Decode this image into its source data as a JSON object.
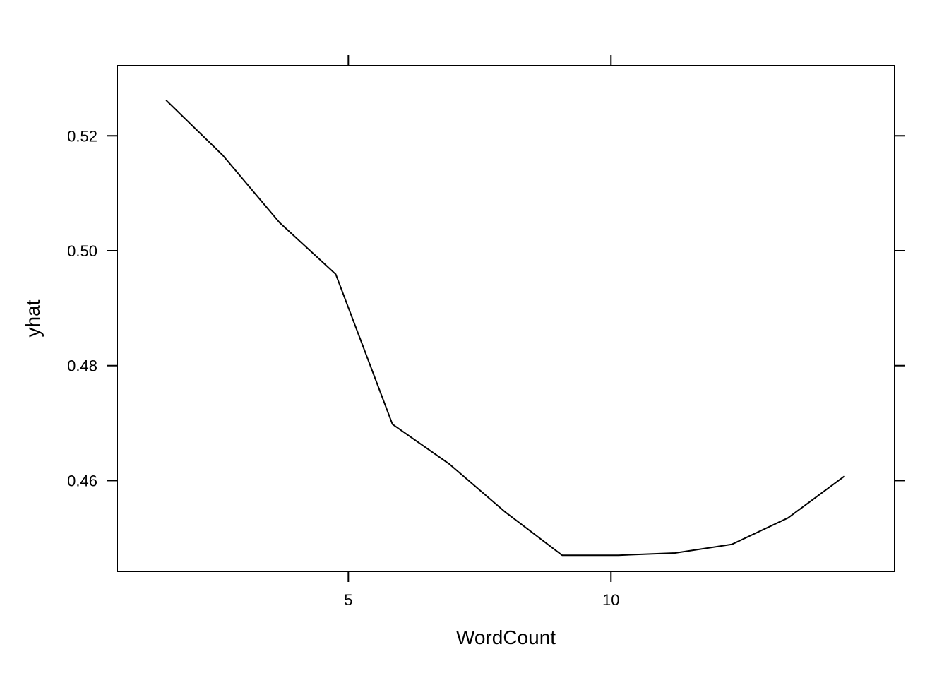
{
  "chart_data": {
    "type": "line",
    "title": "",
    "xlabel": "WordCount",
    "ylabel": "yhat",
    "xlim": [
      0.6,
      15.4
    ],
    "ylim": [
      0.4442,
      0.5322
    ],
    "x_ticks": [
      5,
      10
    ],
    "y_ticks": [
      0.46,
      0.48,
      0.5,
      0.52
    ],
    "y_tick_labels": [
      "0.46",
      "0.48",
      "0.50",
      "0.52"
    ],
    "x_tick_labels": [
      "5",
      "10"
    ],
    "grid": false,
    "legend": "none",
    "line_color": "#000000",
    "series": [
      {
        "x": [
          1.53,
          2.61,
          3.69,
          4.76,
          5.84,
          6.92,
          7.99,
          9.07,
          10.14,
          11.22,
          12.3,
          13.37,
          14.45
        ],
        "y": [
          0.5262,
          0.5166,
          0.5049,
          0.4959,
          0.4698,
          0.4629,
          0.4545,
          0.447,
          0.447,
          0.4474,
          0.4489,
          0.4535,
          0.4608
        ]
      }
    ]
  }
}
